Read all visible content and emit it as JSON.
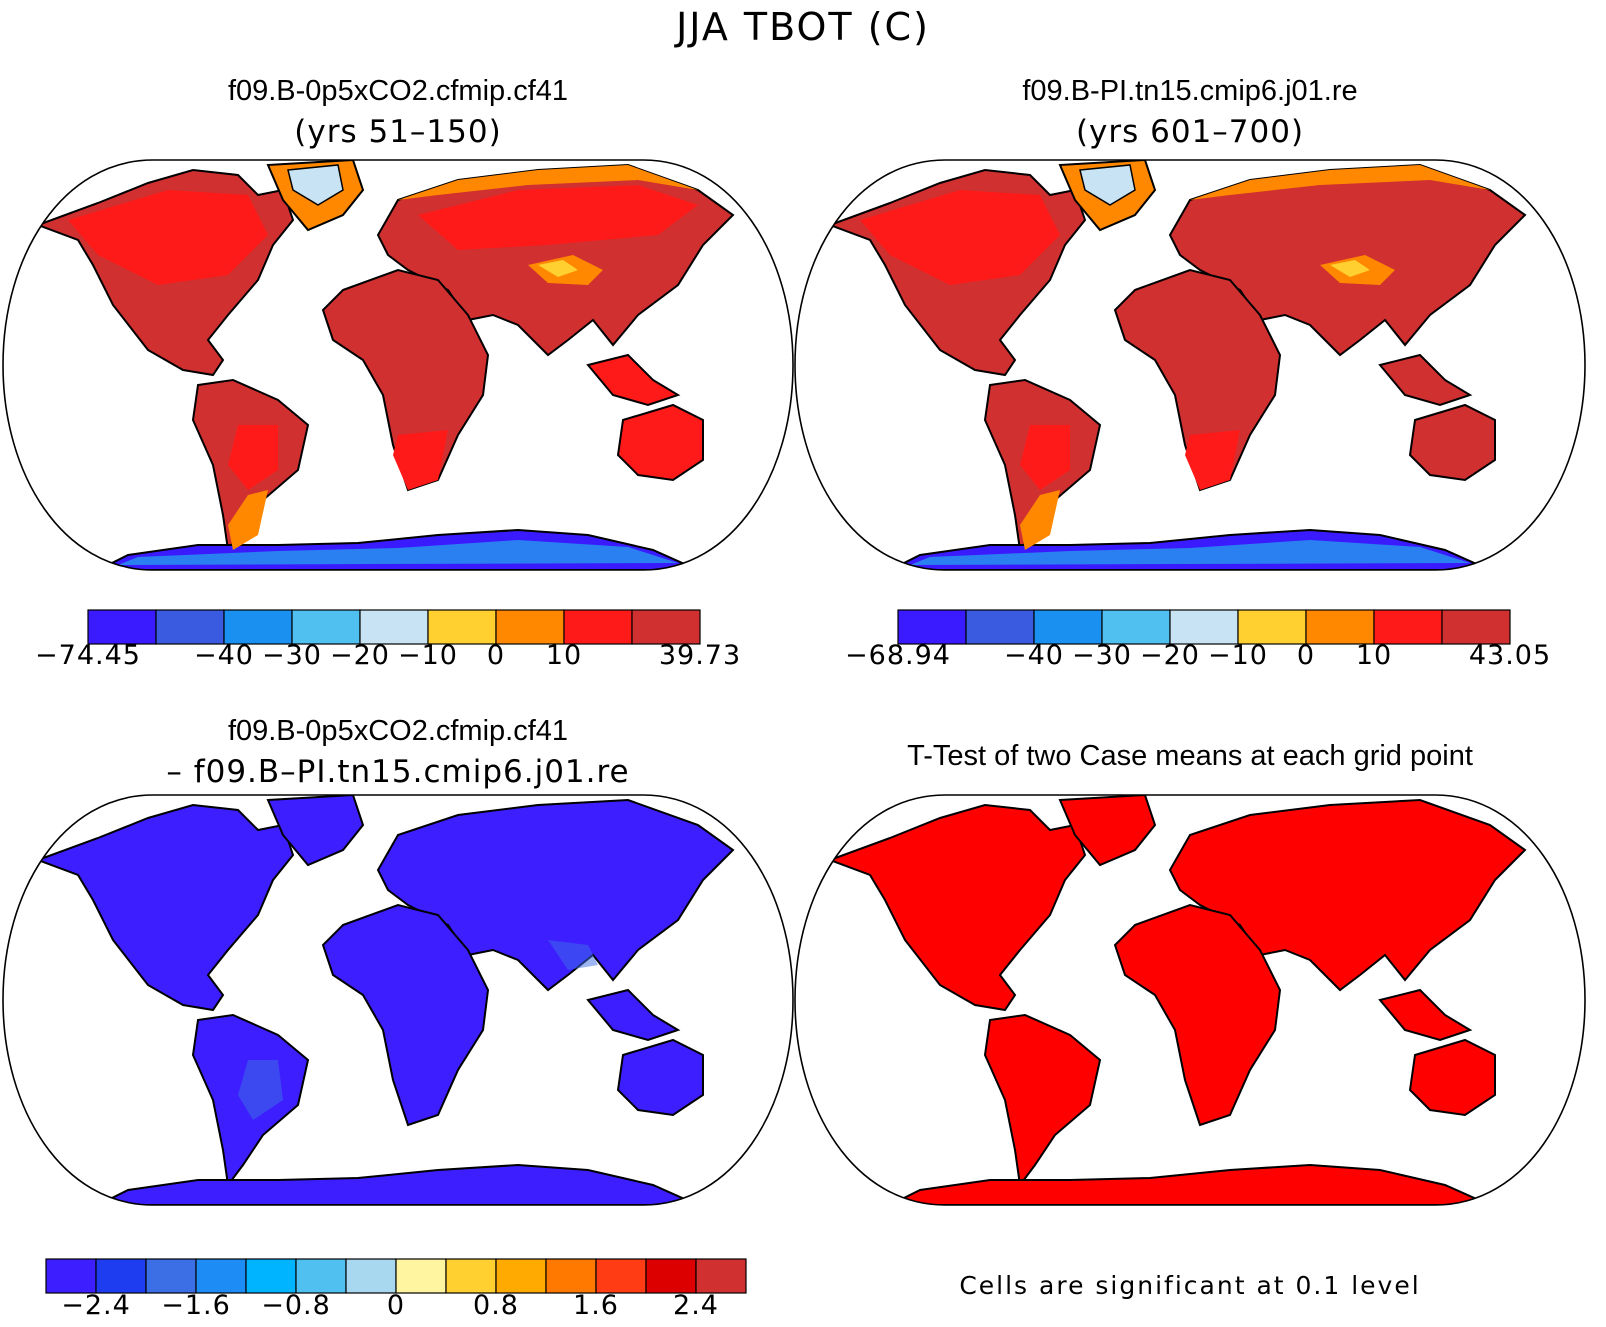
{
  "title": "JJA TBOT (C)",
  "colors": {
    "land_hot": "#d03030",
    "land_warm": "#ff1a1a",
    "land_mild": "#ff8800",
    "land_cool": "#ffd030",
    "ice_light": "#c8e4f4",
    "antarctic_deep": "#3a1aff",
    "antarctic_mid": "#2a80f0",
    "diff_blue": "#3c1eff",
    "sig_red": "#ff0000"
  },
  "panels": [
    {
      "case": "f09.B-0p5xCO2.cfmip.cf41",
      "subtitle": "(yrs 51–150)",
      "style": "abs",
      "colorbar": {
        "colors": [
          "#3a1aff",
          "#3a5ae0",
          "#1a90f0",
          "#50c0f0",
          "#c8e4f4",
          "#ffd030",
          "#ff8800",
          "#ff1a1a",
          "#d03030"
        ],
        "labels": [
          "−74.45",
          "−40",
          "−30",
          "−20",
          "−10",
          "0",
          "10",
          "39.73"
        ],
        "label_at": [
          0,
          2,
          3,
          4,
          5,
          6,
          7,
          9
        ]
      }
    },
    {
      "case": "f09.B-PI.tn15.cmip6.j01.re",
      "subtitle": "(yrs 601–700)",
      "style": "abs2",
      "colorbar": {
        "colors": [
          "#3a1aff",
          "#3a5ae0",
          "#1a90f0",
          "#50c0f0",
          "#c8e4f4",
          "#ffd030",
          "#ff8800",
          "#ff1a1a",
          "#d03030"
        ],
        "labels": [
          "−68.94",
          "−40",
          "−30",
          "−20",
          "−10",
          "0",
          "10",
          "43.05"
        ],
        "label_at": [
          0,
          2,
          3,
          4,
          5,
          6,
          7,
          9
        ]
      }
    },
    {
      "case": "f09.B-0p5xCO2.cfmip.cf41",
      "subtitle": "– f09.B–PI.tn15.cmip6.j01.re",
      "style": "diff",
      "colorbar": {
        "colors": [
          "#3c1eff",
          "#1e3cf0",
          "#3c6ee6",
          "#1e8cf5",
          "#00b4ff",
          "#50c0f0",
          "#a8d8f0",
          "#fff5a0",
          "#ffd030",
          "#ffaa00",
          "#ff7800",
          "#ff3c14",
          "#dc0000",
          "#d03030"
        ],
        "labels": [
          "−2.4",
          "−1.6",
          "−0.8",
          "0",
          "0.8",
          "1.6",
          "2.4"
        ],
        "label_at": [
          1,
          3,
          5,
          7,
          9,
          11,
          13
        ]
      }
    },
    {
      "case": "T-Test of two Case means at each grid point",
      "subtitle": "",
      "style": "sig",
      "note": "Cells are significant at 0.1 level"
    }
  ]
}
